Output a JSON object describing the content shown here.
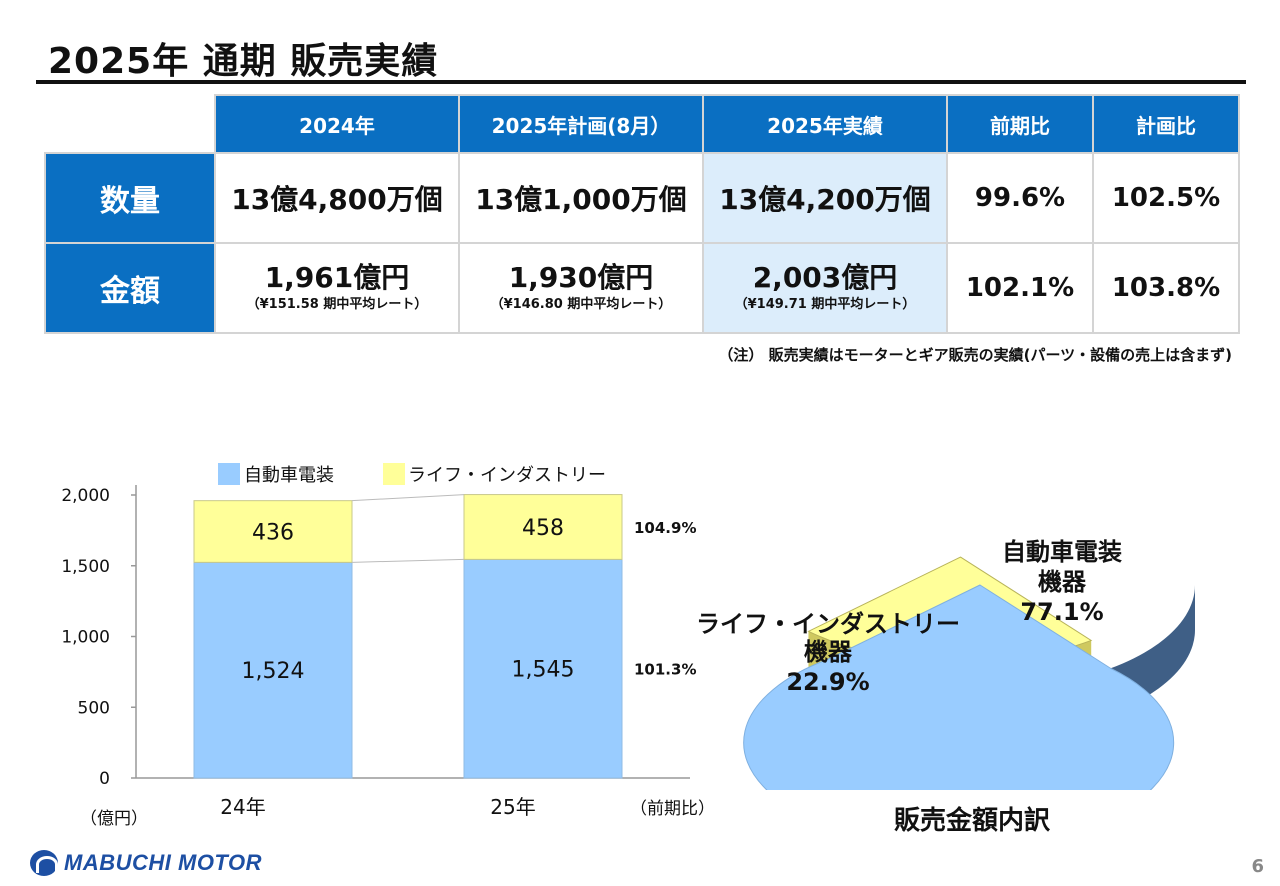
{
  "title": "2025年 通期 販売実績",
  "table": {
    "columns": [
      "2024年",
      "2025年計画(8月）",
      "2025年実績",
      "前期比",
      "計画比"
    ],
    "rows": {
      "quantity": {
        "label": "数量",
        "cells": [
          "13億4,800万個",
          "13億1,000万個",
          "13億4,200万個",
          "99.6%",
          "102.5%"
        ]
      },
      "amount": {
        "label": "金額",
        "main": [
          "1,961億円",
          "1,930億円",
          "2,003億円"
        ],
        "sub": [
          "（¥151.58 期中平均レート）",
          "（¥146.80 期中平均レート）",
          "（¥149.71 期中平均レート）"
        ],
        "pct": [
          "102.1%",
          "103.8%"
        ]
      }
    }
  },
  "note": "（注） 販売実績はモーターとギア販売の実績(パーツ・設備の売上は含まず)",
  "chart_data": [
    {
      "type": "bar",
      "stacked": true,
      "categories": [
        "24年",
        "25年"
      ],
      "series": [
        {
          "name": "自動車電装",
          "values": [
            1524,
            1545
          ],
          "color": "#99ccff"
        },
        {
          "name": "ライフ・インダストリー",
          "values": [
            436,
            458
          ],
          "color": "#ffff99"
        }
      ],
      "ylim": [
        0,
        2000
      ],
      "yticks": [
        "0",
        "500",
        "1,000",
        "1,500",
        "2,000"
      ],
      "value_labels": [
        "1,524",
        "1,545",
        "436",
        "458"
      ],
      "ratio_labels": [
        "101.3%",
        "104.9%"
      ],
      "ylabel": "（億円）",
      "ratio_label_title": "（前期比）",
      "legend": "top"
    },
    {
      "type": "pie",
      "slices": [
        {
          "name": "自動車電装機器",
          "label_lines": [
            "自動車電装",
            "機器"
          ],
          "value": 77.1,
          "value_label": "77.1%",
          "color": "#99ccff"
        },
        {
          "name": "ライフ・インダストリー機器",
          "label_lines": [
            "ライフ・インダストリー",
            "機器"
          ],
          "value": 22.9,
          "value_label": "22.9%",
          "color": "#ffff99"
        }
      ],
      "title": "販売金額内訳"
    }
  ],
  "footer": {
    "logo_text": "MABUCHI MOTOR",
    "page_number": "6"
  }
}
